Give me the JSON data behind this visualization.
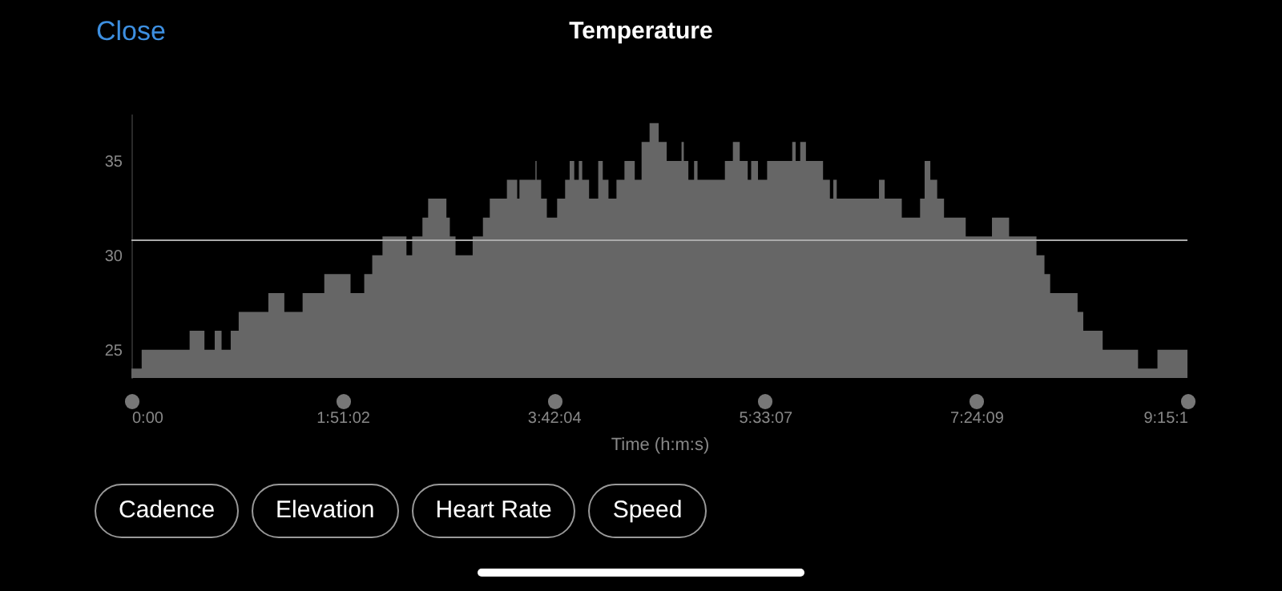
{
  "chart_data": {
    "type": "area",
    "title": "Temperature",
    "xlabel": "Time (h:m:s)",
    "annotations": [
      "Close",
      "Cadence",
      "Elevation",
      "Heart Rate",
      "Speed"
    ],
    "xlim": [
      0,
      9.2528
    ],
    "xticks": [
      {
        "value": 0,
        "label": "0:00"
      },
      {
        "value": 1.8506,
        "label": "1:51:02"
      },
      {
        "value": 3.7011,
        "label": "3:42:04"
      },
      {
        "value": 5.5519,
        "label": "5:33:07"
      },
      {
        "value": 7.4025,
        "label": "7:24:09"
      },
      {
        "value": 9.2528,
        "label": "9:15:1"
      }
    ],
    "ylim": [
      23.5,
      37.5
    ],
    "yticks": [
      25,
      30,
      35
    ],
    "ref_lines": [
      {
        "axis": "y",
        "value": 30.8,
        "color": "#aaaaaa"
      }
    ],
    "series": [
      {
        "color": "#666666",
        "x": [
          0,
          0.09,
          0.51,
          0.64,
          0.73,
          0.79,
          0.87,
          0.94,
          1.2,
          1.34,
          1.5,
          1.69,
          1.92,
          2.04,
          2.11,
          2.2,
          2.41,
          2.46,
          2.55,
          2.6,
          2.76,
          2.79,
          2.84,
          2.99,
          3.08,
          3.14,
          3.29,
          3.38,
          3.4,
          3.54,
          3.55,
          3.59,
          3.64,
          3.73,
          3.8,
          3.84,
          3.88,
          3.92,
          3.95,
          4.01,
          4.09,
          4.13,
          4.18,
          4.25,
          4.32,
          4.41,
          4.47,
          4.54,
          4.62,
          4.69,
          4.82,
          4.84,
          4.88,
          4.93,
          4.96,
          5.2,
          5.27,
          5.33,
          5.4,
          5.43,
          5.49,
          5.57,
          5.79,
          5.82,
          5.86,
          5.91,
          6.06,
          6.12,
          6.15,
          6.18,
          6.55,
          6.6,
          6.75,
          6.91,
          6.95,
          7.0,
          7.06,
          7.12,
          7.31,
          7.54,
          7.69,
          7.93,
          8.0,
          8.05,
          8.29,
          8.34,
          8.51,
          8.82,
          8.99,
          9.2528
        ],
        "values": [
          24,
          25,
          26,
          25,
          26,
          25,
          26,
          27,
          28,
          27,
          28,
          29,
          28,
          29,
          30,
          31,
          30,
          31,
          32,
          33,
          32,
          31,
          30,
          31,
          32,
          33,
          34,
          33,
          34,
          35,
          34,
          33,
          32,
          33,
          34,
          35,
          34,
          35,
          34,
          33,
          35,
          34,
          33,
          34,
          35,
          34,
          36,
          37,
          36,
          35,
          36,
          35,
          34,
          35,
          34,
          35,
          36,
          35,
          34,
          35,
          34,
          35,
          36,
          35,
          36,
          35,
          34,
          33,
          34,
          33,
          34,
          33,
          32,
          33,
          35,
          34,
          33,
          32,
          31,
          32,
          31,
          30,
          29,
          28,
          27,
          26,
          25,
          24,
          25,
          25
        ]
      }
    ]
  }
}
